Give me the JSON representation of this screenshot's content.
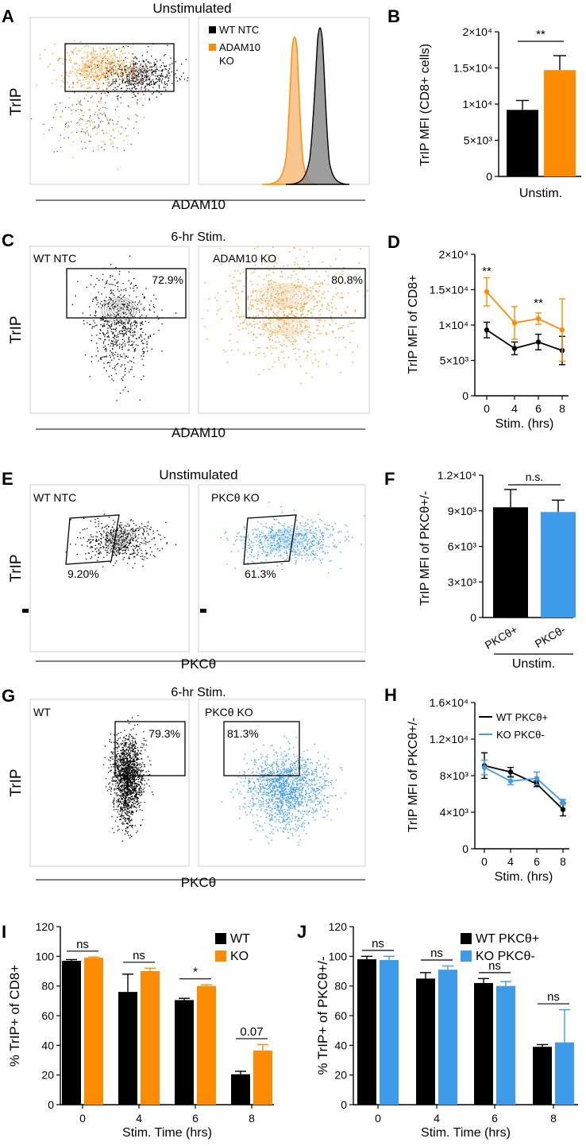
{
  "colors": {
    "wt": "#000000",
    "ko": "#FF8C00",
    "pkc": "#3D9BE9",
    "grey": "#8c8c8c",
    "peach": "#F9C690"
  },
  "panels": {
    "A": {
      "letter": "A",
      "title": "Unstimulated",
      "ylabel": "TrIP",
      "xlabel": "ADAM10",
      "legend": [
        "WT NTC",
        "ADAM10",
        "KO"
      ]
    },
    "C": {
      "letter": "C",
      "title": "6-hr Stim.",
      "ylabel": "TrIP",
      "xlabel": "ADAM10",
      "left_label": "WT NTC",
      "right_label": "ADAM10 KO",
      "left_pct": "72.9%",
      "right_pct": "80.8%"
    },
    "E": {
      "letter": "E",
      "title": "Unstimulated",
      "ylabel": "TrIP",
      "xlabel": "PKCθ",
      "left_label": "WT NTC",
      "right_label": "PKCθ KO",
      "left_pct": "9.20%",
      "right_pct": "61.3%"
    },
    "G": {
      "letter": "G",
      "title": "6-hr Stim.",
      "ylabel": "TrIP",
      "xlabel": "PKCθ",
      "left_label": "WT",
      "right_label": "PKCθ KO",
      "left_pct": "79.3%",
      "right_pct": "81.3%"
    }
  },
  "chart_data": [
    {
      "id": "B",
      "type": "bar",
      "title": "",
      "ylabel": "TrIP MFI (CD8+ cells)",
      "xlabel": "Unstim.",
      "yticks": [
        "0",
        "5×10³",
        "1×10⁴",
        "1.5×10⁴",
        "2×10⁴"
      ],
      "ylim": [
        0,
        20000
      ],
      "values": [
        9200,
        14700
      ],
      "errors": [
        1300,
        2000
      ],
      "colors": [
        "#000000",
        "#FF8C00"
      ],
      "sig": "**"
    },
    {
      "id": "D",
      "type": "line",
      "ylabel": "TrIP MFI of CD8+",
      "xlabel": "Stim. (hrs)",
      "x": [
        0,
        4,
        6,
        8
      ],
      "yticks": [
        "0",
        "5×10³",
        "1×10⁴",
        "1.5×10⁴",
        "2×10⁴"
      ],
      "ylim": [
        0,
        20000
      ],
      "series": [
        {
          "name": "WT",
          "color": "#000000",
          "values": [
            9300,
            6700,
            7600,
            6400
          ],
          "errors": [
            1100,
            900,
            1100,
            2000
          ]
        },
        {
          "name": "KO",
          "color": "#FF8C00",
          "values": [
            14700,
            10300,
            10900,
            9300
          ],
          "errors": [
            2000,
            2300,
            800,
            4400
          ]
        }
      ],
      "annotations": [
        {
          "x": 0,
          "text": "**"
        },
        {
          "x": 6,
          "text": "**"
        }
      ]
    },
    {
      "id": "F",
      "type": "bar",
      "ylabel": "TrIP MFI of PKCθ+/-",
      "xlabel": "Unstim.",
      "yticks": [
        "0",
        "3×10³",
        "6×10³",
        "9×10³",
        "1.2×10⁴"
      ],
      "ylim": [
        0,
        12000
      ],
      "categories": [
        "PKCθ+",
        "PKCθ-"
      ],
      "values": [
        9300,
        8900
      ],
      "errors": [
        1500,
        1000
      ],
      "colors": [
        "#000000",
        "#3D9BE9"
      ],
      "sig": "n.s."
    },
    {
      "id": "H",
      "type": "line",
      "ylabel": "TrIP MFI of PKCθ+/-",
      "xlabel": "Stim. (hrs)",
      "x": [
        0,
        4,
        6,
        8
      ],
      "yticks": [
        "0",
        "4×10³",
        "8×10³",
        "1.2×10⁴",
        "1.6×10⁴"
      ],
      "ylim": [
        0,
        16000
      ],
      "series": [
        {
          "name": "WT PKCθ+",
          "color": "#000000",
          "values": [
            9100,
            8400,
            7100,
            4300
          ],
          "errors": [
            1400,
            500,
            300,
            700
          ]
        },
        {
          "name": "KO PKCθ-",
          "color": "#3D9BE9",
          "values": [
            8900,
            7400,
            7700,
            5100
          ],
          "errors": [
            800,
            400,
            700,
            300
          ]
        }
      ]
    },
    {
      "id": "I",
      "type": "bar",
      "ylabel": "% TrIP+ of CD8+",
      "xlabel": "Stim. Time (hrs)",
      "categories": [
        "0",
        "4",
        "6",
        "8"
      ],
      "yticks": [
        "0",
        "20",
        "40",
        "60",
        "80",
        "100",
        "120"
      ],
      "ylim": [
        0,
        120
      ],
      "series": [
        {
          "name": "WT",
          "color": "#000000",
          "values": [
            97,
            76,
            70.5,
            20.5
          ],
          "errors": [
            0.8,
            12,
            1.2,
            2
          ]
        },
        {
          "name": "KO",
          "color": "#FF8C00",
          "values": [
            99,
            90,
            80,
            36.5
          ],
          "errors": [
            0.5,
            2,
            0.8,
            4
          ]
        }
      ],
      "annotations": [
        "ns",
        "ns",
        "*",
        "0.07"
      ]
    },
    {
      "id": "J",
      "type": "bar",
      "ylabel": "% TrIP+ of PKCθ+/-",
      "xlabel": "Stim. Time (hrs)",
      "categories": [
        "0",
        "4",
        "6",
        "8"
      ],
      "yticks": [
        "0",
        "20",
        "40",
        "60",
        "80",
        "100",
        "120"
      ],
      "ylim": [
        0,
        120
      ],
      "series": [
        {
          "name": "WT PKCθ+",
          "color": "#000000",
          "values": [
            98,
            85,
            82,
            39
          ],
          "errors": [
            2,
            4,
            3,
            1.5
          ]
        },
        {
          "name": "KO PKCθ-",
          "color": "#3D9BE9",
          "values": [
            97.5,
            91,
            80,
            42
          ],
          "errors": [
            2.5,
            2.5,
            3,
            22
          ]
        }
      ],
      "annotations": [
        "ns",
        "ns",
        "ns",
        "ns"
      ]
    }
  ]
}
